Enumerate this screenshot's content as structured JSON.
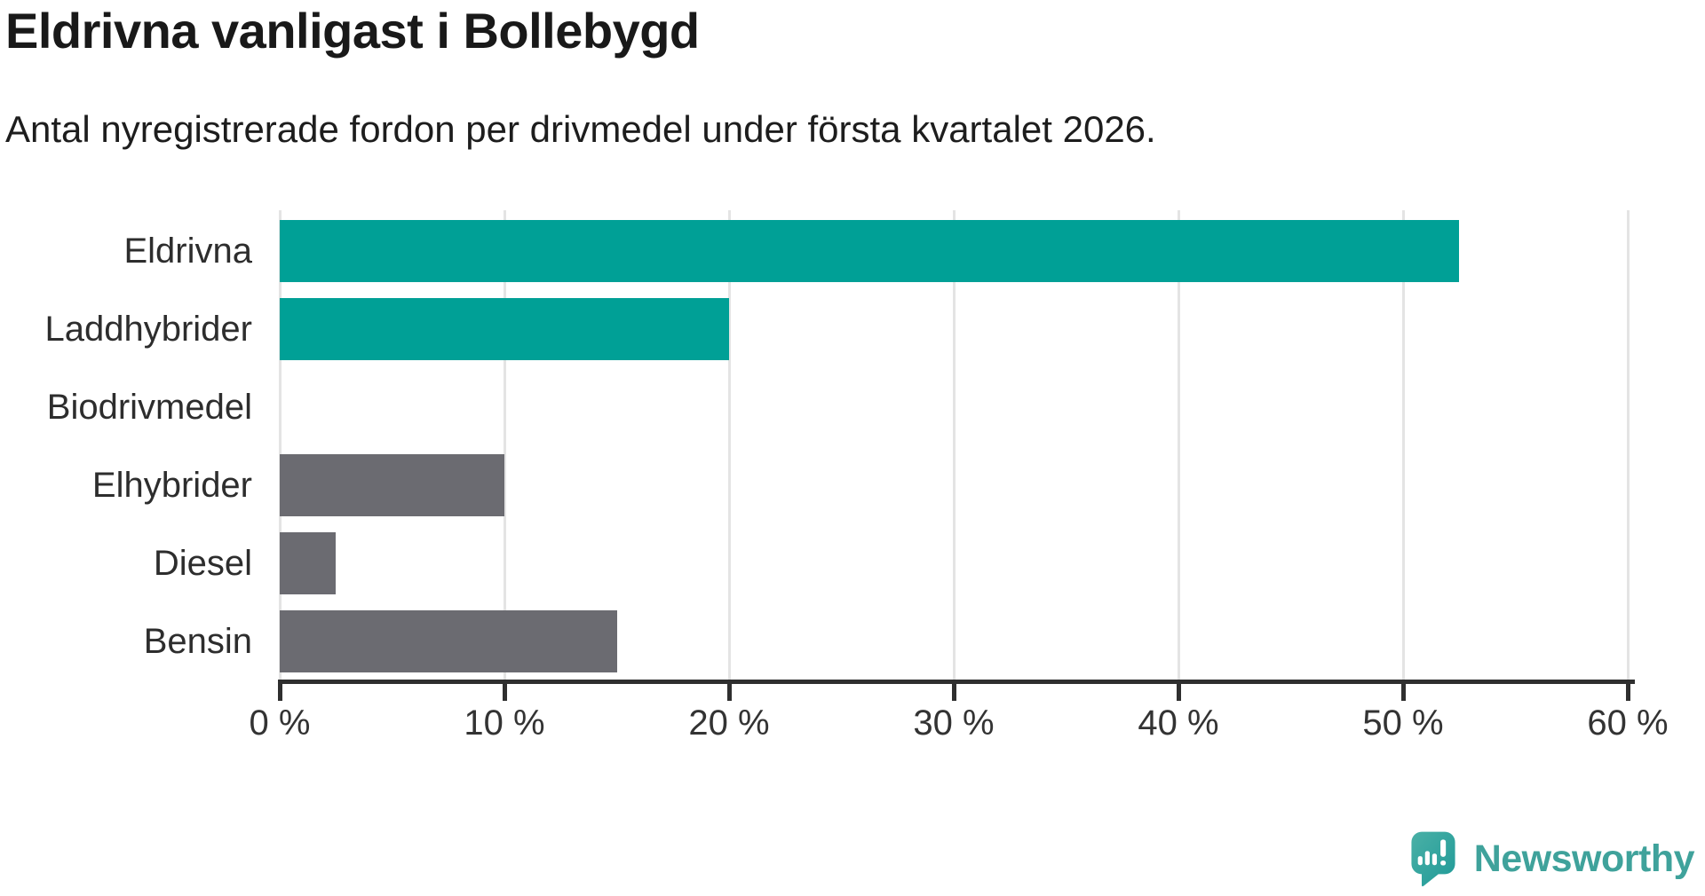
{
  "header": {
    "title": "Eldrivna vanligast i Bollebygd",
    "subtitle": "Antal nyregistrerade fordon per drivmedel under första kvartalet 2026."
  },
  "chart_data": {
    "type": "bar",
    "orientation": "horizontal",
    "title": "Eldrivna vanligast i Bollebygd",
    "subtitle": "Antal nyregistrerade fordon per drivmedel under första kvartalet 2026.",
    "categories": [
      "Eldrivna",
      "Laddhybrider",
      "Biodrivmedel",
      "Elhybrider",
      "Diesel",
      "Bensin"
    ],
    "values": [
      52.5,
      20,
      0,
      10,
      2.5,
      15
    ],
    "unit": "%",
    "xlim": [
      0,
      60
    ],
    "x_tick_values": [
      0,
      10,
      20,
      30,
      40,
      50,
      60
    ],
    "x_tick_labels": [
      "0 %",
      "10 %",
      "20 %",
      "30 %",
      "40 %",
      "50 %",
      "60 %"
    ],
    "grid": "vertical-only",
    "legend": "none",
    "bar_colors": [
      "#00a096",
      "#00a096",
      "#00a096",
      "#6b6b71",
      "#6b6b71",
      "#6b6b71"
    ]
  },
  "colors": {
    "accent_teal": "#00a096",
    "neutral_gray": "#6b6b71",
    "gridline": "#e4e4e4",
    "axis": "#2f2f2f",
    "title_text": "#191919",
    "label_text": "#2d2d2d",
    "logo_teal": "#3fa29b"
  },
  "branding": {
    "logo_text": "Newsworthy",
    "logo_icon": "newsworthy-speech-bubble-chart-icon"
  }
}
